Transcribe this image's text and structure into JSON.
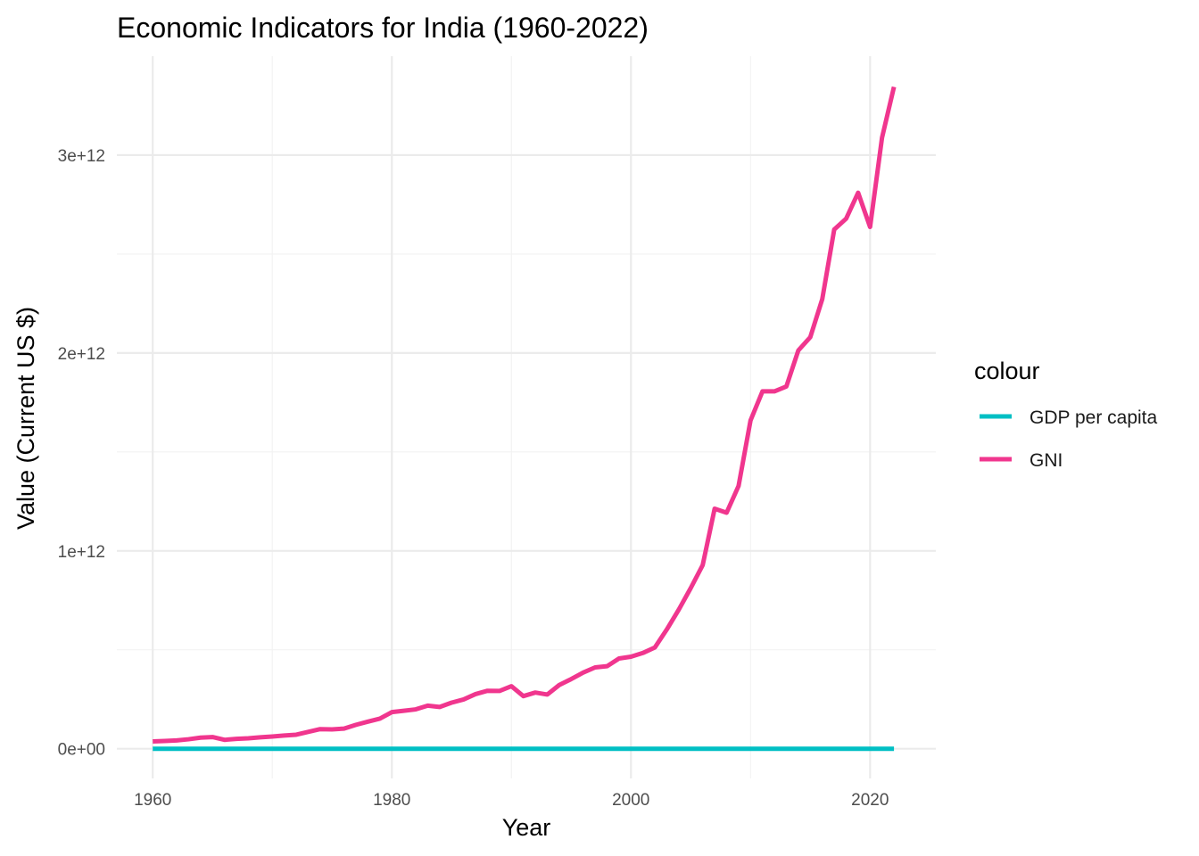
{
  "chart_data": {
    "type": "line",
    "title": "Economic Indicators for India (1960-2022)",
    "xlabel": "Year",
    "ylabel": "Value (Current US $)",
    "xlim": [
      1957,
      2025.5
    ],
    "ylim": [
      -150000000000,
      3500000000000
    ],
    "x_ticks": [
      1960,
      1980,
      2000,
      2020
    ],
    "x_tick_labels": [
      "1960",
      "1980",
      "2000",
      "2020"
    ],
    "x_minor": [
      1970,
      1990,
      2010
    ],
    "y_ticks": [
      0,
      1000000000000,
      2000000000000,
      3000000000000
    ],
    "y_tick_labels": [
      "0e+00",
      "1e+12",
      "2e+12",
      "3e+12"
    ],
    "y_minor": [
      500000000000,
      1500000000000,
      2500000000000
    ],
    "grid": true,
    "legend": {
      "title": "colour",
      "position": "right"
    },
    "x": [
      1960,
      1961,
      1962,
      1963,
      1964,
      1965,
      1966,
      1967,
      1968,
      1969,
      1970,
      1971,
      1972,
      1973,
      1974,
      1975,
      1976,
      1977,
      1978,
      1979,
      1980,
      1981,
      1982,
      1983,
      1984,
      1985,
      1986,
      1987,
      1988,
      1989,
      1990,
      1991,
      1992,
      1993,
      1994,
      1995,
      1996,
      1997,
      1998,
      1999,
      2000,
      2001,
      2002,
      2003,
      2004,
      2005,
      2006,
      2007,
      2008,
      2009,
      2010,
      2011,
      2012,
      2013,
      2014,
      2015,
      2016,
      2017,
      2018,
      2019,
      2020,
      2021,
      2022
    ],
    "series": [
      {
        "name": "GDP per capita",
        "color": "#00BFC4",
        "values": [
          83,
          86,
          90,
          101,
          115,
          119,
          89,
          96,
          99,
          107,
          112,
          118,
          123,
          143,
          163,
          158,
          161,
          186,
          206,
          224,
          267,
          271,
          275,
          291,
          277,
          296,
          310,
          340,
          354,
          347,
          368,
          303,
          317,
          301,
          346,
          374,
          399,
          415,
          413,
          442,
          443,
          452,
          470,
          546,
          627,
          714,
          807,
          1028,
          999,
          1102,
          1358,
          1458,
          1444,
          1450,
          1574,
          1590,
          1714,
          1957,
          1974,
          2050,
          1913,
          2239,
          2388
        ]
      },
      {
        "name": "GNI",
        "color": "#F0368E",
        "values": [
          37000000000,
          39000000000,
          42000000000,
          48000000000,
          56000000000,
          59000000000,
          45000000000,
          50000000000,
          53000000000,
          58000000000,
          62000000000,
          67000000000,
          71000000000,
          85000000000,
          99000000000,
          98000000000,
          102000000000,
          121000000000,
          137000000000,
          152000000000,
          185000000000,
          192000000000,
          199000000000,
          218000000000,
          211000000000,
          233000000000,
          249000000000,
          276000000000,
          293000000000,
          292000000000,
          316000000000,
          266000000000,
          284000000000,
          274000000000,
          322000000000,
          352000000000,
          385000000000,
          411000000000,
          417000000000,
          456000000000,
          465000000000,
          484000000000,
          512000000000,
          603000000000,
          703000000000,
          812000000000,
          928000000000,
          1213000000000,
          1193000000000,
          1328000000000,
          1659000000000,
          1806000000000,
          1806000000000,
          1831000000000,
          2013000000000,
          2080000000000,
          2272000000000,
          2624000000000,
          2679000000000,
          2810000000000,
          2637000000000,
          3088000000000,
          3345000000000
        ]
      }
    ]
  }
}
